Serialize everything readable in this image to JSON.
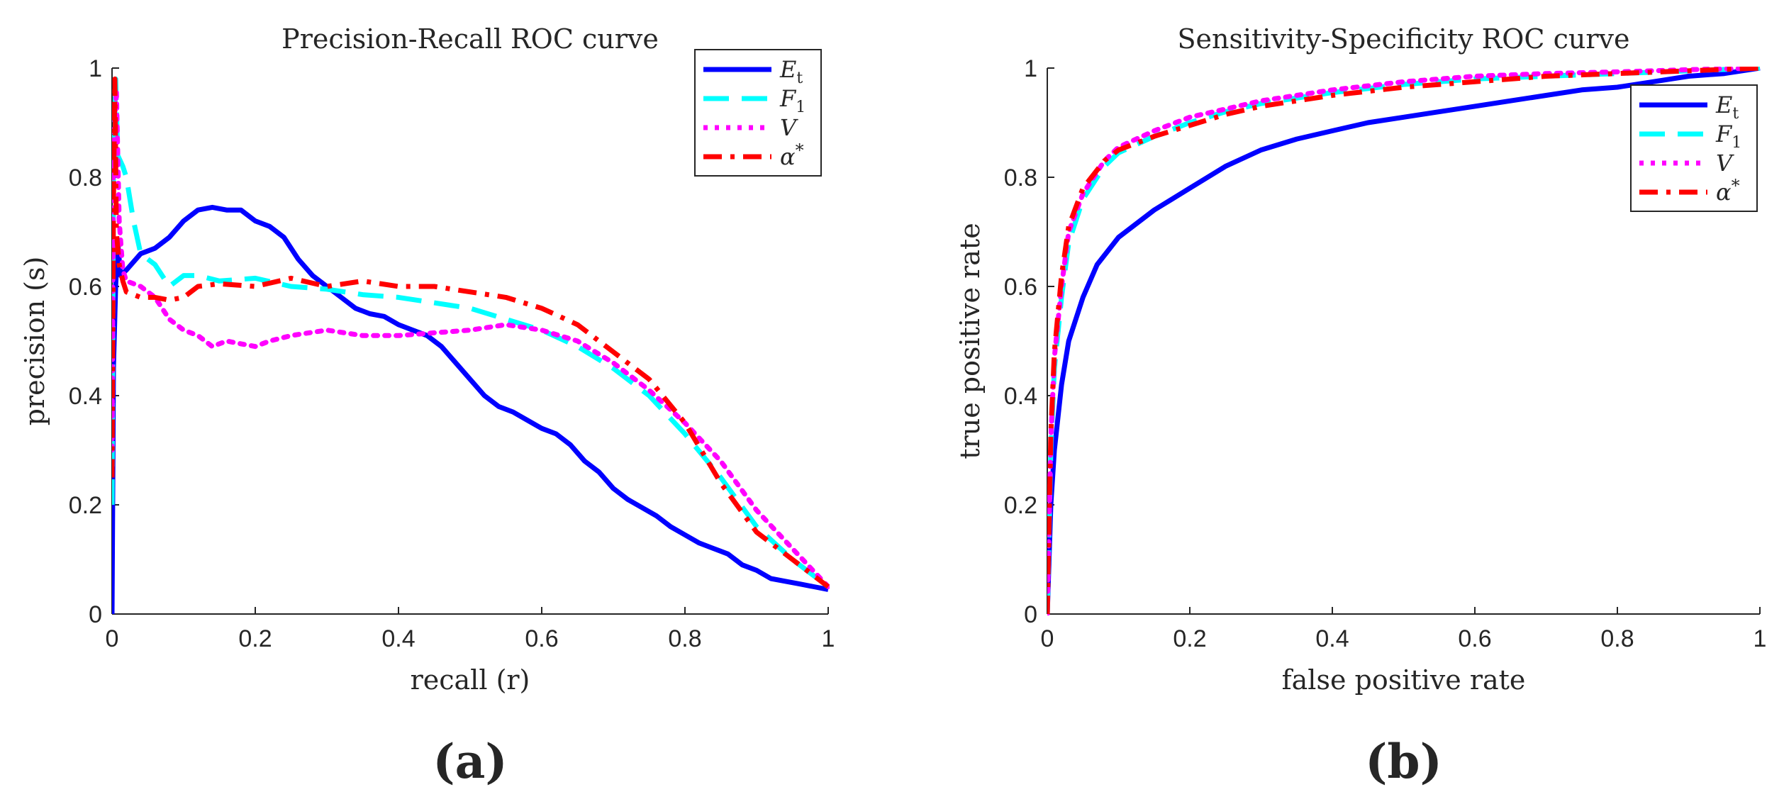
{
  "chart_data": [
    {
      "type": "line",
      "title": "Precision-Recall ROC curve",
      "xlabel": "recall (r)",
      "ylabel": "precision (s)",
      "panel_label": "(a)",
      "xlim": [
        0,
        1
      ],
      "ylim": [
        0,
        1
      ],
      "xticks": [
        "0",
        "0.2",
        "0.4",
        "0.6",
        "0.8",
        "1"
      ],
      "yticks": [
        "0",
        "0.2",
        "0.4",
        "0.6",
        "0.8",
        "1"
      ],
      "legend_position": "top-right",
      "series": [
        {
          "name": "E_t",
          "legend_label": "E",
          "legend_sub": "t",
          "legend_sup": "",
          "color": "#0000ff",
          "style": "solid",
          "points": [
            [
              0,
              0
            ],
            [
              0.002,
              0.45
            ],
            [
              0.005,
              0.6
            ],
            [
              0.008,
              0.68
            ],
            [
              0.012,
              0.62
            ],
            [
              0.02,
              0.63
            ],
            [
              0.04,
              0.66
            ],
            [
              0.06,
              0.67
            ],
            [
              0.08,
              0.69
            ],
            [
              0.1,
              0.72
            ],
            [
              0.12,
              0.74
            ],
            [
              0.14,
              0.745
            ],
            [
              0.16,
              0.74
            ],
            [
              0.18,
              0.74
            ],
            [
              0.2,
              0.72
            ],
            [
              0.22,
              0.71
            ],
            [
              0.24,
              0.69
            ],
            [
              0.26,
              0.65
            ],
            [
              0.28,
              0.62
            ],
            [
              0.3,
              0.6
            ],
            [
              0.32,
              0.58
            ],
            [
              0.34,
              0.56
            ],
            [
              0.36,
              0.55
            ],
            [
              0.38,
              0.545
            ],
            [
              0.4,
              0.53
            ],
            [
              0.42,
              0.52
            ],
            [
              0.44,
              0.51
            ],
            [
              0.46,
              0.49
            ],
            [
              0.48,
              0.46
            ],
            [
              0.5,
              0.43
            ],
            [
              0.52,
              0.4
            ],
            [
              0.54,
              0.38
            ],
            [
              0.56,
              0.37
            ],
            [
              0.58,
              0.355
            ],
            [
              0.6,
              0.34
            ],
            [
              0.62,
              0.33
            ],
            [
              0.64,
              0.31
            ],
            [
              0.66,
              0.28
            ],
            [
              0.68,
              0.26
            ],
            [
              0.7,
              0.23
            ],
            [
              0.72,
              0.21
            ],
            [
              0.74,
              0.195
            ],
            [
              0.76,
              0.18
            ],
            [
              0.78,
              0.16
            ],
            [
              0.8,
              0.145
            ],
            [
              0.82,
              0.13
            ],
            [
              0.84,
              0.12
            ],
            [
              0.86,
              0.11
            ],
            [
              0.88,
              0.09
            ],
            [
              0.9,
              0.08
            ],
            [
              0.92,
              0.065
            ],
            [
              0.94,
              0.06
            ],
            [
              0.96,
              0.055
            ],
            [
              0.98,
              0.05
            ],
            [
              1,
              0.045
            ]
          ]
        },
        {
          "name": "F_1",
          "legend_label": "F",
          "legend_sub": "1",
          "legend_sup": "",
          "color": "#00ffff",
          "style": "dashed",
          "points": [
            [
              0,
              0.2
            ],
            [
              0.002,
              0.8
            ],
            [
              0.005,
              0.98
            ],
            [
              0.008,
              0.84
            ],
            [
              0.015,
              0.82
            ],
            [
              0.02,
              0.8
            ],
            [
              0.03,
              0.72
            ],
            [
              0.04,
              0.66
            ],
            [
              0.06,
              0.64
            ],
            [
              0.08,
              0.6
            ],
            [
              0.1,
              0.62
            ],
            [
              0.12,
              0.62
            ],
            [
              0.15,
              0.61
            ],
            [
              0.2,
              0.615
            ],
            [
              0.25,
              0.6
            ],
            [
              0.3,
              0.595
            ],
            [
              0.35,
              0.585
            ],
            [
              0.4,
              0.58
            ],
            [
              0.45,
              0.57
            ],
            [
              0.5,
              0.56
            ],
            [
              0.55,
              0.54
            ],
            [
              0.6,
              0.52
            ],
            [
              0.65,
              0.49
            ],
            [
              0.7,
              0.45
            ],
            [
              0.75,
              0.4
            ],
            [
              0.8,
              0.33
            ],
            [
              0.85,
              0.25
            ],
            [
              0.9,
              0.16
            ],
            [
              0.95,
              0.1
            ],
            [
              1,
              0.05
            ]
          ]
        },
        {
          "name": "V",
          "legend_label": "V",
          "legend_sub": "",
          "legend_sup": "",
          "color": "#ff00ff",
          "style": "dotted",
          "points": [
            [
              0,
              0.3
            ],
            [
              0.002,
              0.85
            ],
            [
              0.006,
              0.96
            ],
            [
              0.01,
              0.72
            ],
            [
              0.015,
              0.63
            ],
            [
              0.02,
              0.61
            ],
            [
              0.04,
              0.6
            ],
            [
              0.06,
              0.58
            ],
            [
              0.08,
              0.54
            ],
            [
              0.1,
              0.52
            ],
            [
              0.12,
              0.51
            ],
            [
              0.14,
              0.49
            ],
            [
              0.16,
              0.5
            ],
            [
              0.18,
              0.495
            ],
            [
              0.2,
              0.49
            ],
            [
              0.22,
              0.5
            ],
            [
              0.25,
              0.51
            ],
            [
              0.3,
              0.52
            ],
            [
              0.35,
              0.51
            ],
            [
              0.4,
              0.51
            ],
            [
              0.45,
              0.515
            ],
            [
              0.5,
              0.52
            ],
            [
              0.55,
              0.53
            ],
            [
              0.6,
              0.52
            ],
            [
              0.65,
              0.5
            ],
            [
              0.7,
              0.46
            ],
            [
              0.75,
              0.41
            ],
            [
              0.8,
              0.35
            ],
            [
              0.85,
              0.28
            ],
            [
              0.9,
              0.19
            ],
            [
              0.95,
              0.12
            ],
            [
              1,
              0.05
            ]
          ]
        },
        {
          "name": "α*",
          "legend_label": "α",
          "legend_sub": "",
          "legend_sup": "*",
          "color": "#ff0000",
          "style": "dashdot",
          "points": [
            [
              0,
              0.25
            ],
            [
              0.002,
              0.75
            ],
            [
              0.004,
              0.98
            ],
            [
              0.006,
              0.7
            ],
            [
              0.01,
              0.64
            ],
            [
              0.015,
              0.61
            ],
            [
              0.02,
              0.59
            ],
            [
              0.04,
              0.58
            ],
            [
              0.06,
              0.58
            ],
            [
              0.08,
              0.575
            ],
            [
              0.1,
              0.58
            ],
            [
              0.12,
              0.6
            ],
            [
              0.15,
              0.605
            ],
            [
              0.2,
              0.6
            ],
            [
              0.25,
              0.615
            ],
            [
              0.3,
              0.6
            ],
            [
              0.35,
              0.61
            ],
            [
              0.4,
              0.6
            ],
            [
              0.45,
              0.6
            ],
            [
              0.5,
              0.59
            ],
            [
              0.55,
              0.58
            ],
            [
              0.6,
              0.56
            ],
            [
              0.65,
              0.53
            ],
            [
              0.7,
              0.48
            ],
            [
              0.75,
              0.43
            ],
            [
              0.8,
              0.35
            ],
            [
              0.85,
              0.24
            ],
            [
              0.9,
              0.15
            ],
            [
              0.95,
              0.1
            ],
            [
              1,
              0.05
            ]
          ]
        }
      ]
    },
    {
      "type": "line",
      "title": "Sensitivity-Specificity ROC curve",
      "xlabel": "false positive rate",
      "ylabel": "true positive rate",
      "panel_label": "(b)",
      "xlim": [
        0,
        1
      ],
      "ylim": [
        0,
        1
      ],
      "xticks": [
        "0",
        "0.2",
        "0.4",
        "0.6",
        "0.8",
        "1"
      ],
      "yticks": [
        "0",
        "0.2",
        "0.4",
        "0.6",
        "0.8",
        "1"
      ],
      "legend_position": "top-right",
      "series": [
        {
          "name": "E_t",
          "legend_label": "E",
          "legend_sub": "t",
          "legend_sup": "",
          "color": "#0000ff",
          "style": "solid",
          "points": [
            [
              0,
              0
            ],
            [
              0.005,
              0.2
            ],
            [
              0.01,
              0.3
            ],
            [
              0.02,
              0.42
            ],
            [
              0.03,
              0.5
            ],
            [
              0.05,
              0.58
            ],
            [
              0.07,
              0.64
            ],
            [
              0.1,
              0.69
            ],
            [
              0.15,
              0.74
            ],
            [
              0.2,
              0.78
            ],
            [
              0.25,
              0.82
            ],
            [
              0.3,
              0.85
            ],
            [
              0.35,
              0.87
            ],
            [
              0.4,
              0.885
            ],
            [
              0.45,
              0.9
            ],
            [
              0.5,
              0.91
            ],
            [
              0.55,
              0.92
            ],
            [
              0.6,
              0.93
            ],
            [
              0.65,
              0.94
            ],
            [
              0.7,
              0.95
            ],
            [
              0.75,
              0.96
            ],
            [
              0.8,
              0.965
            ],
            [
              0.85,
              0.975
            ],
            [
              0.9,
              0.985
            ],
            [
              0.95,
              0.99
            ],
            [
              1,
              1
            ]
          ]
        },
        {
          "name": "F_1",
          "legend_label": "F",
          "legend_sub": "1",
          "legend_sup": "",
          "color": "#00ffff",
          "style": "dashed",
          "points": [
            [
              0,
              0
            ],
            [
              0.005,
              0.3
            ],
            [
              0.01,
              0.45
            ],
            [
              0.02,
              0.58
            ],
            [
              0.03,
              0.68
            ],
            [
              0.05,
              0.76
            ],
            [
              0.08,
              0.82
            ],
            [
              0.1,
              0.845
            ],
            [
              0.15,
              0.875
            ],
            [
              0.2,
              0.9
            ],
            [
              0.25,
              0.92
            ],
            [
              0.3,
              0.935
            ],
            [
              0.4,
              0.955
            ],
            [
              0.5,
              0.97
            ],
            [
              0.6,
              0.98
            ],
            [
              0.7,
              0.985
            ],
            [
              0.8,
              0.99
            ],
            [
              0.9,
              0.995
            ],
            [
              1,
              1
            ]
          ]
        },
        {
          "name": "V",
          "legend_label": "V",
          "legend_sub": "",
          "legend_sup": "",
          "color": "#ff00ff",
          "style": "dotted",
          "points": [
            [
              0,
              0
            ],
            [
              0.005,
              0.32
            ],
            [
              0.01,
              0.47
            ],
            [
              0.02,
              0.6
            ],
            [
              0.03,
              0.7
            ],
            [
              0.05,
              0.77
            ],
            [
              0.08,
              0.83
            ],
            [
              0.1,
              0.855
            ],
            [
              0.15,
              0.885
            ],
            [
              0.2,
              0.91
            ],
            [
              0.25,
              0.925
            ],
            [
              0.3,
              0.94
            ],
            [
              0.4,
              0.96
            ],
            [
              0.5,
              0.975
            ],
            [
              0.6,
              0.985
            ],
            [
              0.7,
              0.99
            ],
            [
              0.8,
              0.993
            ],
            [
              0.9,
              0.997
            ],
            [
              1,
              1
            ]
          ]
        },
        {
          "name": "α*",
          "legend_label": "α",
          "legend_sub": "",
          "legend_sup": "*",
          "color": "#ff0000",
          "style": "dashdot",
          "points": [
            [
              0,
              0
            ],
            [
              0.005,
              0.33
            ],
            [
              0.01,
              0.48
            ],
            [
              0.02,
              0.62
            ],
            [
              0.03,
              0.71
            ],
            [
              0.05,
              0.78
            ],
            [
              0.08,
              0.83
            ],
            [
              0.1,
              0.85
            ],
            [
              0.15,
              0.875
            ],
            [
              0.2,
              0.895
            ],
            [
              0.25,
              0.915
            ],
            [
              0.3,
              0.93
            ],
            [
              0.4,
              0.95
            ],
            [
              0.5,
              0.965
            ],
            [
              0.6,
              0.975
            ],
            [
              0.7,
              0.985
            ],
            [
              0.8,
              0.99
            ],
            [
              0.9,
              0.995
            ],
            [
              1,
              1
            ]
          ]
        }
      ]
    }
  ]
}
